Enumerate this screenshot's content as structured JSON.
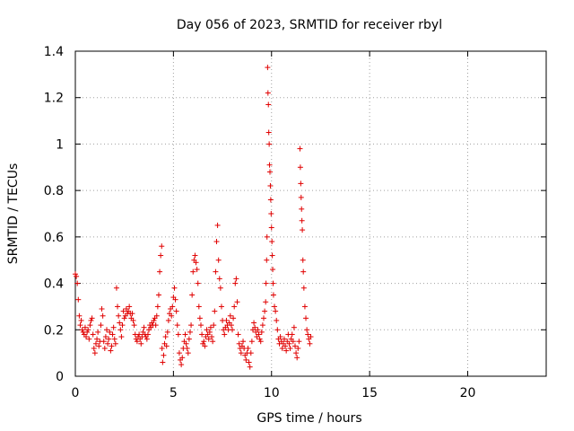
{
  "chart_data": {
    "type": "scatter",
    "title": "Day 056 of 2023, SRMTID for receiver rbyl",
    "xlabel": "GPS time / hours",
    "ylabel": "SRMTID / TECUs",
    "xlim": [
      0,
      24
    ],
    "ylim": [
      0,
      1.4
    ],
    "x_ticks": [
      0,
      5,
      10,
      15,
      20
    ],
    "y_ticks": [
      0,
      0.2,
      0.4,
      0.6,
      0.8,
      1,
      1.2,
      1.4
    ],
    "x_tick_labels": [
      "0",
      "5",
      "10",
      "15",
      "20"
    ],
    "y_tick_labels": [
      "0",
      "0.2",
      "0.4",
      "0.6",
      "0.8",
      "1",
      "1.2",
      "1.4"
    ],
    "grid": true,
    "marker": "+",
    "color": "#e00000",
    "series": [
      {
        "name": "SRMTID",
        "points": [
          [
            0.0,
            0.44
          ],
          [
            0.05,
            0.43
          ],
          [
            0.1,
            0.4
          ],
          [
            0.15,
            0.33
          ],
          [
            0.2,
            0.26
          ],
          [
            0.25,
            0.22
          ],
          [
            0.3,
            0.24
          ],
          [
            0.35,
            0.2
          ],
          [
            0.4,
            0.19
          ],
          [
            0.45,
            0.18
          ],
          [
            0.5,
            0.21
          ],
          [
            0.55,
            0.17
          ],
          [
            0.6,
            0.19
          ],
          [
            0.65,
            0.2
          ],
          [
            0.7,
            0.16
          ],
          [
            0.75,
            0.22
          ],
          [
            0.8,
            0.24
          ],
          [
            0.85,
            0.25
          ],
          [
            0.9,
            0.18
          ],
          [
            0.95,
            0.12
          ],
          [
            1.0,
            0.1
          ],
          [
            1.05,
            0.14
          ],
          [
            1.1,
            0.16
          ],
          [
            1.15,
            0.19
          ],
          [
            1.2,
            0.13
          ],
          [
            1.25,
            0.15
          ],
          [
            1.3,
            0.22
          ],
          [
            1.35,
            0.29
          ],
          [
            1.4,
            0.26
          ],
          [
            1.45,
            0.15
          ],
          [
            1.5,
            0.12
          ],
          [
            1.55,
            0.17
          ],
          [
            1.6,
            0.2
          ],
          [
            1.65,
            0.14
          ],
          [
            1.7,
            0.16
          ],
          [
            1.75,
            0.19
          ],
          [
            1.8,
            0.11
          ],
          [
            1.85,
            0.13
          ],
          [
            1.9,
            0.18
          ],
          [
            1.95,
            0.21
          ],
          [
            2.0,
            0.16
          ],
          [
            2.05,
            0.14
          ],
          [
            2.1,
            0.38
          ],
          [
            2.15,
            0.3
          ],
          [
            2.2,
            0.26
          ],
          [
            2.25,
            0.23
          ],
          [
            2.3,
            0.2
          ],
          [
            2.35,
            0.17
          ],
          [
            2.4,
            0.22
          ],
          [
            2.45,
            0.28
          ],
          [
            2.5,
            0.25
          ],
          [
            2.55,
            0.26
          ],
          [
            2.6,
            0.29
          ],
          [
            2.65,
            0.27
          ],
          [
            2.7,
            0.28
          ],
          [
            2.75,
            0.3
          ],
          [
            2.8,
            0.27
          ],
          [
            2.85,
            0.25
          ],
          [
            2.9,
            0.27
          ],
          [
            2.95,
            0.24
          ],
          [
            3.0,
            0.22
          ],
          [
            3.05,
            0.18
          ],
          [
            3.1,
            0.16
          ],
          [
            3.15,
            0.15
          ],
          [
            3.2,
            0.17
          ],
          [
            3.25,
            0.18
          ],
          [
            3.3,
            0.16
          ],
          [
            3.35,
            0.14
          ],
          [
            3.4,
            0.17
          ],
          [
            3.45,
            0.19
          ],
          [
            3.5,
            0.21
          ],
          [
            3.55,
            0.18
          ],
          [
            3.6,
            0.17
          ],
          [
            3.65,
            0.16
          ],
          [
            3.7,
            0.18
          ],
          [
            3.75,
            0.2
          ],
          [
            3.8,
            0.22
          ],
          [
            3.85,
            0.21
          ],
          [
            3.9,
            0.23
          ],
          [
            3.95,
            0.22
          ],
          [
            4.0,
            0.24
          ],
          [
            4.05,
            0.25
          ],
          [
            4.1,
            0.22
          ],
          [
            4.15,
            0.26
          ],
          [
            4.2,
            0.3
          ],
          [
            4.25,
            0.35
          ],
          [
            4.3,
            0.45
          ],
          [
            4.35,
            0.52
          ],
          [
            4.4,
            0.56
          ],
          [
            4.42,
            0.12
          ],
          [
            4.45,
            0.06
          ],
          [
            4.5,
            0.09
          ],
          [
            4.55,
            0.14
          ],
          [
            4.6,
            0.17
          ],
          [
            4.65,
            0.13
          ],
          [
            4.7,
            0.19
          ],
          [
            4.75,
            0.24
          ],
          [
            4.8,
            0.27
          ],
          [
            4.85,
            0.29
          ],
          [
            4.9,
            0.26
          ],
          [
            4.95,
            0.3
          ],
          [
            5.0,
            0.34
          ],
          [
            5.05,
            0.38
          ],
          [
            5.1,
            0.33
          ],
          [
            5.15,
            0.28
          ],
          [
            5.2,
            0.22
          ],
          [
            5.25,
            0.18
          ],
          [
            5.3,
            0.1
          ],
          [
            5.35,
            0.07
          ],
          [
            5.4,
            0.05
          ],
          [
            5.45,
            0.08
          ],
          [
            5.5,
            0.12
          ],
          [
            5.55,
            0.15
          ],
          [
            5.6,
            0.18
          ],
          [
            5.65,
            0.14
          ],
          [
            5.7,
            0.12
          ],
          [
            5.75,
            0.1
          ],
          [
            5.8,
            0.16
          ],
          [
            5.85,
            0.19
          ],
          [
            5.9,
            0.22
          ],
          [
            5.95,
            0.35
          ],
          [
            6.0,
            0.45
          ],
          [
            6.05,
            0.5
          ],
          [
            6.1,
            0.52
          ],
          [
            6.15,
            0.49
          ],
          [
            6.2,
            0.46
          ],
          [
            6.25,
            0.4
          ],
          [
            6.3,
            0.3
          ],
          [
            6.35,
            0.25
          ],
          [
            6.4,
            0.22
          ],
          [
            6.45,
            0.18
          ],
          [
            6.5,
            0.14
          ],
          [
            6.55,
            0.15
          ],
          [
            6.6,
            0.13
          ],
          [
            6.65,
            0.17
          ],
          [
            6.7,
            0.2
          ],
          [
            6.75,
            0.18
          ],
          [
            6.8,
            0.16
          ],
          [
            6.85,
            0.19
          ],
          [
            6.9,
            0.21
          ],
          [
            6.95,
            0.17
          ],
          [
            7.0,
            0.15
          ],
          [
            7.05,
            0.22
          ],
          [
            7.1,
            0.28
          ],
          [
            7.15,
            0.45
          ],
          [
            7.2,
            0.58
          ],
          [
            7.25,
            0.65
          ],
          [
            7.3,
            0.5
          ],
          [
            7.35,
            0.42
          ],
          [
            7.4,
            0.38
          ],
          [
            7.45,
            0.3
          ],
          [
            7.5,
            0.24
          ],
          [
            7.55,
            0.2
          ],
          [
            7.6,
            0.18
          ],
          [
            7.65,
            0.21
          ],
          [
            7.7,
            0.24
          ],
          [
            7.75,
            0.22
          ],
          [
            7.8,
            0.2
          ],
          [
            7.85,
            0.23
          ],
          [
            7.9,
            0.26
          ],
          [
            7.95,
            0.22
          ],
          [
            8.0,
            0.2
          ],
          [
            8.05,
            0.25
          ],
          [
            8.1,
            0.3
          ],
          [
            8.15,
            0.4
          ],
          [
            8.2,
            0.42
          ],
          [
            8.25,
            0.32
          ],
          [
            8.3,
            0.18
          ],
          [
            8.35,
            0.14
          ],
          [
            8.4,
            0.12
          ],
          [
            8.45,
            0.1
          ],
          [
            8.5,
            0.13
          ],
          [
            8.55,
            0.15
          ],
          [
            8.6,
            0.12
          ],
          [
            8.65,
            0.09
          ],
          [
            8.7,
            0.07
          ],
          [
            8.75,
            0.1
          ],
          [
            8.8,
            0.12
          ],
          [
            8.85,
            0.06
          ],
          [
            8.9,
            0.04
          ],
          [
            8.95,
            0.1
          ],
          [
            9.0,
            0.15
          ],
          [
            9.05,
            0.2
          ],
          [
            9.1,
            0.23
          ],
          [
            9.15,
            0.21
          ],
          [
            9.2,
            0.19
          ],
          [
            9.25,
            0.17
          ],
          [
            9.3,
            0.2
          ],
          [
            9.35,
            0.18
          ],
          [
            9.4,
            0.16
          ],
          [
            9.45,
            0.15
          ],
          [
            9.5,
            0.19
          ],
          [
            9.55,
            0.22
          ],
          [
            9.6,
            0.25
          ],
          [
            9.65,
            0.28
          ],
          [
            9.7,
            0.32
          ],
          [
            9.72,
            0.4
          ],
          [
            9.75,
            0.5
          ],
          [
            9.77,
            0.6
          ],
          [
            9.8,
            1.33
          ],
          [
            9.82,
            1.22
          ],
          [
            9.84,
            1.17
          ],
          [
            9.86,
            1.05
          ],
          [
            9.88,
            1.0
          ],
          [
            9.9,
            0.91
          ],
          [
            9.92,
            0.88
          ],
          [
            9.94,
            0.82
          ],
          [
            9.96,
            0.76
          ],
          [
            9.98,
            0.7
          ],
          [
            10.0,
            0.64
          ],
          [
            10.02,
            0.58
          ],
          [
            10.04,
            0.52
          ],
          [
            10.06,
            0.46
          ],
          [
            10.08,
            0.4
          ],
          [
            10.1,
            0.35
          ],
          [
            10.15,
            0.3
          ],
          [
            10.2,
            0.28
          ],
          [
            10.25,
            0.24
          ],
          [
            10.3,
            0.2
          ],
          [
            10.35,
            0.16
          ],
          [
            10.4,
            0.14
          ],
          [
            10.45,
            0.17
          ],
          [
            10.5,
            0.15
          ],
          [
            10.55,
            0.12
          ],
          [
            10.6,
            0.14
          ],
          [
            10.65,
            0.16
          ],
          [
            10.7,
            0.13
          ],
          [
            10.75,
            0.11
          ],
          [
            10.8,
            0.15
          ],
          [
            10.85,
            0.18
          ],
          [
            10.9,
            0.14
          ],
          [
            10.95,
            0.12
          ],
          [
            11.0,
            0.16
          ],
          [
            11.05,
            0.18
          ],
          [
            11.1,
            0.15
          ],
          [
            11.15,
            0.21
          ],
          [
            11.2,
            0.13
          ],
          [
            11.25,
            0.1
          ],
          [
            11.3,
            0.08
          ],
          [
            11.35,
            0.12
          ],
          [
            11.4,
            0.15
          ],
          [
            11.45,
            0.98
          ],
          [
            11.47,
            0.9
          ],
          [
            11.49,
            0.83
          ],
          [
            11.51,
            0.77
          ],
          [
            11.53,
            0.72
          ],
          [
            11.55,
            0.67
          ],
          [
            11.57,
            0.63
          ],
          [
            11.6,
            0.5
          ],
          [
            11.62,
            0.45
          ],
          [
            11.65,
            0.38
          ],
          [
            11.7,
            0.3
          ],
          [
            11.75,
            0.25
          ],
          [
            11.8,
            0.2
          ],
          [
            11.85,
            0.18
          ],
          [
            11.9,
            0.16
          ],
          [
            11.95,
            0.14
          ],
          [
            12.0,
            0.17
          ]
        ]
      }
    ]
  }
}
